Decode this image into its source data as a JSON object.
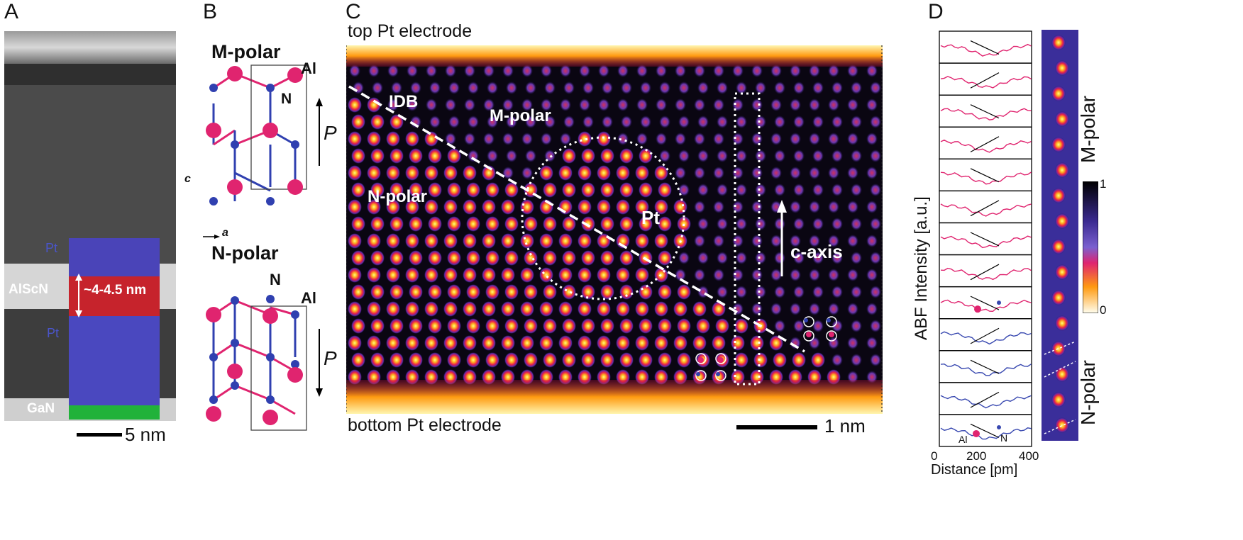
{
  "panel_labels": [
    "A",
    "B",
    "C",
    "D"
  ],
  "panel_a": {
    "layers": [
      "Pt",
      "AlScN",
      "Pt",
      "GaN"
    ],
    "thickness": "~4-4.5 nm",
    "scale_bar": "5 nm"
  },
  "panel_b": {
    "top_title": "M-polar",
    "bottom_title": "N-polar",
    "atom_al": "Al",
    "atom_n": "N",
    "polarization": "P",
    "axis_c": "c",
    "axis_a": "a",
    "colors": {
      "metal": "#e0246f",
      "nitrogen": "#3040b0"
    }
  },
  "panel_c": {
    "top_label": "top Pt electrode",
    "bottom_label": "bottom Pt electrode",
    "idb": "IDB",
    "m_polar": "M-polar",
    "n_polar": "N-polar",
    "pt": "Pt",
    "c_axis": "c-axis",
    "scale_bar": "1 nm"
  },
  "panel_d": {
    "ylabel": "ABF Intensity [a.u.]",
    "xlabel": "Distance [pm]",
    "xticks": [
      "0",
      "200",
      "400"
    ],
    "right_label_top": "M-polar",
    "right_label_bottom": "N-polar",
    "colorbar_max": "1",
    "colorbar_min": "0",
    "atom_al": "Al",
    "atom_n": "N",
    "colors": {
      "m_polar_line": "#e0246f",
      "n_polar_line": "#3848b0"
    }
  }
}
